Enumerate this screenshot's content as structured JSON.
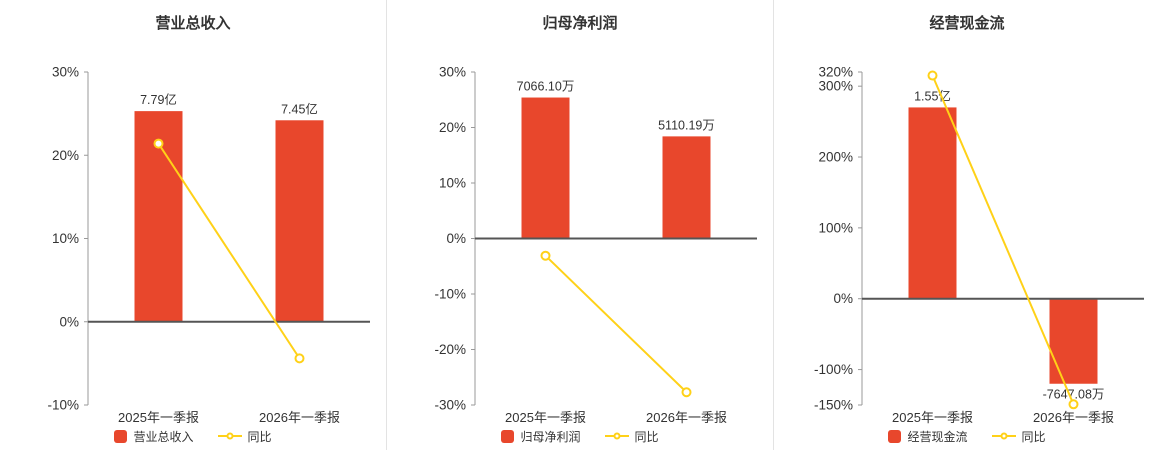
{
  "page": {
    "background_color": "#ffffff",
    "divider_color": "#e3e3e3"
  },
  "style": {
    "axis_line_color": "#999999",
    "zero_line_color": "#555555",
    "tick_label_color": "#333333",
    "bar_label_color": "#333333",
    "category_label_color": "#333333",
    "title_color": "#333333",
    "legend_text_color": "#333333"
  },
  "chart_data": [
    {
      "type": "bar+line",
      "title": "营业总收入",
      "categories": [
        "2025年一季报",
        "2026年一季报"
      ],
      "bar_series": {
        "name": "营业总收入",
        "values": [
          7.79,
          7.45
        ],
        "unit": "亿",
        "value_labels": [
          "7.79亿",
          "7.45亿"
        ],
        "plotted_height_axis_pct": [
          25.3,
          24.2
        ],
        "color": "#e8472c"
      },
      "line_series": {
        "name": "同比",
        "values_pct": [
          21.4,
          -4.4
        ],
        "color": "#ffd118"
      },
      "y_axis": {
        "range_pct": [
          -10,
          30
        ],
        "ticks_pct": [
          30,
          20,
          10,
          0,
          -10
        ],
        "tick_format": "percent"
      },
      "legend_position": "bottom",
      "grid": false
    },
    {
      "type": "bar+line",
      "title": "归母净利润",
      "categories": [
        "2025年一季报",
        "2026年一季报"
      ],
      "bar_series": {
        "name": "归母净利润",
        "values": [
          7066.1,
          5110.19
        ],
        "unit": "万",
        "value_labels": [
          "7066.10万",
          "5110.19万"
        ],
        "plotted_height_axis_pct": [
          25.4,
          18.4
        ],
        "color": "#e8472c"
      },
      "line_series": {
        "name": "同比",
        "values_pct": [
          -3.1,
          -27.7
        ],
        "color": "#ffd118"
      },
      "y_axis": {
        "range_pct": [
          -30,
          30
        ],
        "ticks_pct": [
          30,
          20,
          10,
          0,
          -10,
          -20,
          -30
        ],
        "tick_format": "percent"
      },
      "legend_position": "bottom",
      "grid": false
    },
    {
      "type": "bar+line",
      "title": "经营现金流",
      "categories": [
        "2025年一季报",
        "2026年一季报"
      ],
      "bar_series": {
        "name": "经营现金流",
        "values": [
          "1.55亿",
          "-7647.08万"
        ],
        "value_labels": [
          "1.55亿",
          "-7647.08万"
        ],
        "plotted_height_axis_pct": [
          270,
          -120
        ],
        "color": "#e8472c"
      },
      "line_series": {
        "name": "同比",
        "values_pct": [
          315,
          -149
        ],
        "color": "#ffd118"
      },
      "y_axis": {
        "range_pct": [
          -150,
          320
        ],
        "ticks_pct": [
          320,
          300,
          200,
          100,
          0,
          -100,
          -150
        ],
        "tick_format": "percent"
      },
      "legend_position": "bottom",
      "grid": false
    }
  ]
}
